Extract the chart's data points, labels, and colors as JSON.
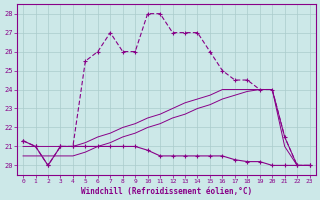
{
  "xlabel": "Windchill (Refroidissement éolien,°C)",
  "background_color": "#cce8e8",
  "grid_color": "#aacccc",
  "line_color": "#880088",
  "x_hours": [
    0,
    1,
    2,
    3,
    4,
    5,
    6,
    7,
    8,
    9,
    10,
    11,
    12,
    13,
    14,
    15,
    16,
    17,
    18,
    19,
    20,
    21,
    22,
    23
  ],
  "temp_line": [
    21.3,
    21.0,
    20.0,
    21.0,
    21.0,
    25.5,
    26.0,
    27.0,
    26.0,
    26.0,
    28.0,
    28.0,
    27.0,
    27.0,
    27.0,
    26.0,
    25.0,
    24.5,
    24.5,
    24.0,
    24.0,
    21.5,
    20.0,
    20.0
  ],
  "windchill_line": [
    21.3,
    21.0,
    20.0,
    21.0,
    21.0,
    21.0,
    21.0,
    21.0,
    21.0,
    21.0,
    20.8,
    20.5,
    20.5,
    20.5,
    20.5,
    20.5,
    20.5,
    20.3,
    20.2,
    20.2,
    20.0,
    20.0,
    20.0,
    20.0
  ],
  "feel_line1": [
    21.0,
    21.0,
    21.0,
    21.0,
    21.0,
    21.2,
    21.5,
    21.7,
    22.0,
    22.2,
    22.5,
    22.7,
    23.0,
    23.3,
    23.5,
    23.7,
    24.0,
    24.0,
    24.0,
    24.0,
    24.0,
    21.5,
    20.0,
    20.0
  ],
  "feel_line2": [
    20.5,
    20.5,
    20.5,
    20.5,
    20.5,
    20.7,
    21.0,
    21.2,
    21.5,
    21.7,
    22.0,
    22.2,
    22.5,
    22.7,
    23.0,
    23.2,
    23.5,
    23.7,
    23.9,
    24.0,
    24.0,
    21.0,
    20.0,
    20.0
  ],
  "xlim": [
    -0.5,
    23.5
  ],
  "ylim": [
    19.5,
    28.5
  ],
  "yticks": [
    20,
    21,
    22,
    23,
    24,
    25,
    26,
    27,
    28
  ],
  "xticks": [
    0,
    1,
    2,
    3,
    4,
    5,
    6,
    7,
    8,
    9,
    10,
    11,
    12,
    13,
    14,
    15,
    16,
    17,
    18,
    19,
    20,
    21,
    22,
    23
  ]
}
